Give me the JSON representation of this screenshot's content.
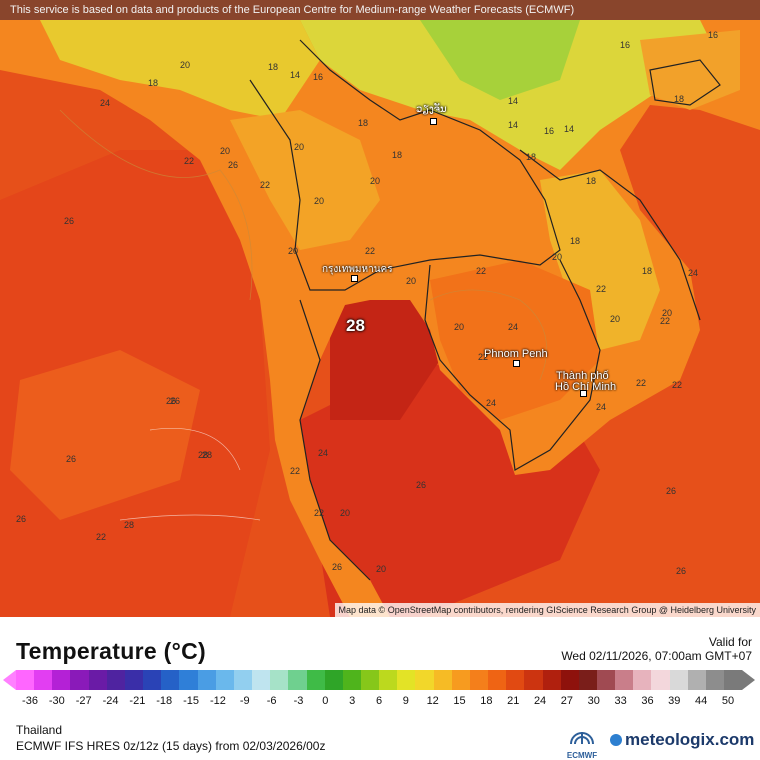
{
  "disclaimer": "This service is based on data and products of the European Centre for Medium-range Weather Forecasts (ECMWF)",
  "attribution": "Map data © OpenStreetMap contributors, rendering GIScience Research Group @ Heidelberg University",
  "map": {
    "max_value_label": "28",
    "cities": [
      {
        "name": "กรุงเทพมหานคร"
      },
      {
        "name": "Phnom Penh"
      },
      {
        "name": "Thành phố"
      },
      {
        "name": "Hồ Chí Minh"
      },
      {
        "name": "ວຽງຈັນ"
      }
    ],
    "contour_labels": [
      "20",
      "18",
      "24",
      "18",
      "16",
      "14",
      "14",
      "16",
      "22",
      "20",
      "18",
      "20",
      "26",
      "22",
      "20",
      "18",
      "22",
      "20",
      "14",
      "18",
      "20",
      "26",
      "22",
      "20",
      "20",
      "22",
      "22",
      "20",
      "24",
      "22",
      "24",
      "22",
      "26",
      "26",
      "28",
      "22",
      "26",
      "20",
      "20",
      "26",
      "26",
      "22",
      "26",
      "28",
      "24",
      "26",
      "22",
      "18",
      "14",
      "16",
      "18",
      "24",
      "16",
      "20",
      "18",
      "18",
      "22",
      "20",
      "24",
      "26",
      "28"
    ]
  },
  "legend": {
    "title": "Temperature (°C)",
    "valid_label": "Valid for",
    "valid_time": "Wed 02/11/2026, 07:00am GMT+07",
    "ticks": [
      "-36",
      "-30",
      "-27",
      "-24",
      "-21",
      "-18",
      "-15",
      "-12",
      "-9",
      "-6",
      "-3",
      "0",
      "3",
      "6",
      "9",
      "12",
      "15",
      "18",
      "21",
      "24",
      "27",
      "30",
      "33",
      "36",
      "39",
      "44",
      "50"
    ],
    "colors": [
      "#ff66ff",
      "#e23ef2",
      "#b421d6",
      "#8a1ab9",
      "#6a1ba6",
      "#4f23a0",
      "#3a2ea8",
      "#2a43b6",
      "#2561c7",
      "#2f7fd8",
      "#4a9de4",
      "#6ab8ec",
      "#92cfef",
      "#bfe4ef",
      "#a6e2c8",
      "#6fd08f",
      "#3fbb47",
      "#2fa528",
      "#4fb41c",
      "#86c71a",
      "#bcd91e",
      "#e3e326",
      "#f2d72a",
      "#f6bb25",
      "#f79b1f",
      "#f47f1b",
      "#ef6414",
      "#e14a12",
      "#cc3410",
      "#b0200e",
      "#8e120c",
      "#7a1e1a",
      "#a04a52",
      "#c97e8a",
      "#e7b3bd",
      "#f3d7dc",
      "#d9d9d9",
      "#b0b0b0",
      "#8d8d8d",
      "#7a7a7a"
    ]
  },
  "footer": {
    "region": "Thailand",
    "model": "ECMWF IFS HRES 0z/12z (15 days) from 02/03/2026/00z",
    "ecmwf_logo_text": "ECMWF",
    "brand": "meteologix.com"
  }
}
